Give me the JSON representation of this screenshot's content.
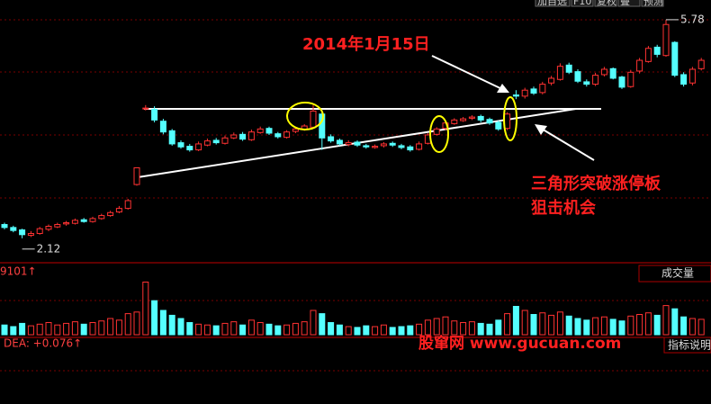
{
  "toolbar": [
    "加自选",
    "F10",
    "复权",
    "叠",
    "预测"
  ],
  "chart_data": {
    "type": "candlestick",
    "ylim": [
      1.71,
      6.11
    ],
    "up_color": "#ff3232",
    "down_color": "#54ffff",
    "open": [
      2.35,
      2.3,
      2.26,
      2.17,
      2.2,
      2.27,
      2.31,
      2.36,
      2.37,
      2.43,
      2.4,
      2.45,
      2.5,
      2.56,
      2.62,
      3.02,
      4.3,
      4.28,
      4.08,
      3.92,
      3.72,
      3.66,
      3.6,
      3.68,
      3.76,
      3.71,
      3.8,
      3.86,
      3.77,
      3.89,
      3.96,
      3.87,
      3.81,
      3.91,
      3.94,
      3.98,
      4.2,
      3.82,
      3.76,
      3.69,
      3.73,
      3.67,
      3.64,
      3.67,
      3.71,
      3.67,
      3.65,
      3.61,
      3.71,
      3.86,
      3.96,
      4.04,
      4.09,
      4.13,
      4.16,
      4.11,
      4.06,
      3.96,
      4.52,
      4.5,
      4.62,
      4.56,
      4.72,
      4.78,
      5.02,
      4.91,
      4.74,
      4.7,
      4.86,
      4.96,
      4.82,
      4.66,
      4.92,
      5.08,
      5.32,
      5.18,
      5.4,
      4.86,
      4.72,
      4.96
    ],
    "high": [
      2.38,
      2.33,
      2.28,
      2.24,
      2.31,
      2.35,
      2.38,
      2.41,
      2.45,
      2.46,
      2.48,
      2.53,
      2.58,
      2.66,
      2.78,
      3.3,
      4.35,
      4.33,
      4.12,
      3.95,
      3.76,
      3.7,
      3.74,
      3.79,
      3.8,
      3.84,
      3.89,
      3.9,
      3.94,
      3.99,
      3.99,
      3.9,
      3.93,
      3.98,
      4.03,
      4.35,
      4.24,
      3.86,
      3.79,
      3.76,
      3.76,
      3.7,
      3.69,
      3.73,
      3.74,
      3.7,
      3.68,
      3.74,
      3.88,
      3.98,
      4.08,
      4.13,
      4.15,
      4.18,
      4.19,
      4.14,
      4.09,
      4.23,
      4.6,
      4.64,
      4.66,
      4.74,
      4.84,
      5.05,
      5.06,
      4.95,
      4.78,
      4.89,
      4.99,
      4.98,
      4.84,
      4.94,
      5.14,
      5.34,
      5.36,
      5.78,
      5.42,
      4.9,
      4.99,
      5.14
    ],
    "low": [
      2.27,
      2.22,
      2.12,
      2.14,
      2.18,
      2.24,
      2.29,
      2.33,
      2.35,
      2.38,
      2.38,
      2.43,
      2.48,
      2.54,
      2.6,
      3.0,
      4.26,
      4.06,
      3.86,
      3.67,
      3.62,
      3.57,
      3.58,
      3.66,
      3.69,
      3.69,
      3.78,
      3.75,
      3.75,
      3.87,
      3.85,
      3.79,
      3.79,
      3.88,
      3.92,
      3.96,
      3.6,
      3.72,
      3.67,
      3.66,
      3.65,
      3.62,
      3.62,
      3.64,
      3.65,
      3.61,
      3.57,
      3.59,
      3.69,
      3.84,
      3.93,
      4.02,
      4.07,
      4.1,
      4.06,
      4.02,
      3.92,
      3.93,
      4.45,
      4.46,
      4.52,
      4.53,
      4.68,
      4.76,
      4.87,
      4.72,
      4.66,
      4.67,
      4.83,
      4.78,
      4.62,
      4.64,
      4.88,
      5.06,
      5.15,
      5.16,
      4.82,
      4.66,
      4.68,
      4.93
    ],
    "close": [
      2.3,
      2.25,
      2.18,
      2.2,
      2.28,
      2.32,
      2.35,
      2.38,
      2.42,
      2.4,
      2.45,
      2.5,
      2.55,
      2.62,
      2.75,
      3.3,
      4.3,
      4.1,
      3.9,
      3.7,
      3.65,
      3.6,
      3.7,
      3.75,
      3.72,
      3.8,
      3.85,
      3.78,
      3.9,
      3.95,
      3.88,
      3.82,
      3.9,
      3.95,
      4.0,
      4.25,
      3.8,
      3.75,
      3.7,
      3.72,
      3.68,
      3.65,
      3.66,
      3.7,
      3.68,
      3.64,
      3.6,
      3.7,
      3.85,
      3.95,
      4.05,
      4.1,
      4.12,
      4.15,
      4.1,
      4.05,
      3.95,
      4.2,
      4.5,
      4.6,
      4.55,
      4.7,
      4.8,
      5.0,
      4.9,
      4.75,
      4.7,
      4.85,
      4.95,
      4.8,
      4.65,
      4.9,
      5.1,
      5.3,
      5.2,
      5.7,
      4.85,
      4.7,
      4.95,
      5.1
    ],
    "annotations": [
      "2014年1月15日",
      "三角形突破涨停板",
      "狙击机会"
    ],
    "volume": {
      "label": "成交量",
      "indicator": "9101↑",
      "ylim": [
        0,
        8000
      ],
      "values": [
        1200,
        1000,
        1400,
        1100,
        1300,
        1500,
        1200,
        1400,
        1600,
        1300,
        1500,
        1700,
        2000,
        1800,
        2600,
        2800,
        6500,
        4200,
        3000,
        2400,
        2000,
        1500,
        1300,
        1200,
        1100,
        1400,
        1600,
        1200,
        1800,
        1500,
        1300,
        1100,
        1200,
        1400,
        1600,
        3000,
        2600,
        1500,
        1200,
        1000,
        900,
        1100,
        1000,
        1200,
        900,
        1000,
        1100,
        1300,
        1800,
        2000,
        2200,
        1700,
        1500,
        1600,
        1400,
        1300,
        1800,
        2600,
        3500,
        3000,
        2500,
        2700,
        2400,
        2800,
        2300,
        2000,
        1800,
        2100,
        2200,
        1900,
        1700,
        2300,
        2500,
        2700,
        2400,
        3600,
        3200,
        2200,
        2000,
        1900
      ]
    },
    "macd": {
      "indicator": "DEA: +0.076↑",
      "button": "指标说明"
    },
    "watermark": "股窜网 www.gucuan.com"
  }
}
